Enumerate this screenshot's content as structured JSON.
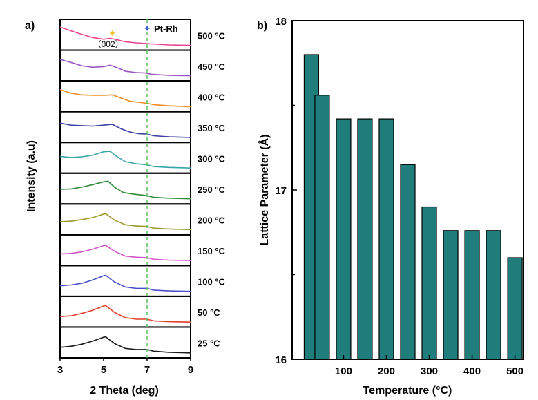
{
  "chart_data": [
    {
      "type": "line",
      "panel_label": "a)",
      "xlabel": "2 Theta (deg)",
      "ylabel": "Intensity (a.u)",
      "xlim": [
        3,
        9
      ],
      "x_ticks": [
        "3",
        "5",
        "7",
        "9"
      ],
      "stacked": true,
      "reference_line_x": 7,
      "annotations": [
        {
          "text": "Pt-Rh",
          "marker": "blue-star",
          "x": 7
        },
        {
          "text": "（002）",
          "marker": "yellow-star",
          "x": 5.4
        }
      ],
      "series": [
        {
          "name": "500 °C",
          "color": "#e8458f",
          "points": [
            [
              3,
              0.9
            ],
            [
              3.5,
              0.72
            ],
            [
              4,
              0.55
            ],
            [
              4.5,
              0.4
            ],
            [
              5,
              0.32
            ],
            [
              5.3,
              0.36
            ],
            [
              5.6,
              0.3
            ],
            [
              6,
              0.2
            ],
            [
              6.5,
              0.15
            ],
            [
              6.9,
              0.12
            ],
            [
              7.2,
              0.1
            ],
            [
              8,
              0.05
            ],
            [
              9,
              0.03
            ]
          ]
        },
        {
          "name": "450 °C",
          "color": "#9b56c4",
          "points": [
            [
              3,
              0.82
            ],
            [
              3.5,
              0.68
            ],
            [
              4,
              0.52
            ],
            [
              4.5,
              0.45
            ],
            [
              5,
              0.48
            ],
            [
              5.3,
              0.55
            ],
            [
              5.7,
              0.4
            ],
            [
              6,
              0.26
            ],
            [
              6.5,
              0.2
            ],
            [
              6.9,
              0.18
            ],
            [
              7.2,
              0.12
            ],
            [
              8,
              0.07
            ],
            [
              9,
              0.05
            ]
          ]
        },
        {
          "name": "400 °C",
          "color": "#f08c21",
          "points": [
            [
              3,
              0.85
            ],
            [
              3.5,
              0.68
            ],
            [
              4,
              0.6
            ],
            [
              4.5,
              0.58
            ],
            [
              5,
              0.58
            ],
            [
              5.4,
              0.6
            ],
            [
              5.8,
              0.45
            ],
            [
              6.2,
              0.3
            ],
            [
              6.6,
              0.25
            ],
            [
              7,
              0.2
            ],
            [
              7.3,
              0.14
            ],
            [
              8,
              0.08
            ],
            [
              9,
              0.04
            ]
          ]
        },
        {
          "name": "350 °C",
          "color": "#3b3fa0",
          "points": [
            [
              3,
              0.72
            ],
            [
              3.5,
              0.62
            ],
            [
              4,
              0.6
            ],
            [
              4.5,
              0.58
            ],
            [
              5,
              0.62
            ],
            [
              5.4,
              0.66
            ],
            [
              5.8,
              0.45
            ],
            [
              6.2,
              0.3
            ],
            [
              6.6,
              0.22
            ],
            [
              7,
              0.2
            ],
            [
              7.3,
              0.12
            ],
            [
              8,
              0.07
            ],
            [
              9,
              0.04
            ]
          ]
        },
        {
          "name": "300 °C",
          "color": "#3aa5a8",
          "points": [
            [
              3,
              0.6
            ],
            [
              3.5,
              0.55
            ],
            [
              4,
              0.58
            ],
            [
              4.5,
              0.66
            ],
            [
              5,
              0.82
            ],
            [
              5.3,
              0.84
            ],
            [
              5.6,
              0.6
            ],
            [
              6,
              0.35
            ],
            [
              6.5,
              0.25
            ],
            [
              7,
              0.2
            ],
            [
              7.3,
              0.12
            ],
            [
              8,
              0.08
            ],
            [
              9,
              0.05
            ]
          ]
        },
        {
          "name": "250 °C",
          "color": "#2e8b3a",
          "points": [
            [
              3,
              0.5
            ],
            [
              3.5,
              0.52
            ],
            [
              4,
              0.6
            ],
            [
              4.5,
              0.72
            ],
            [
              5,
              0.85
            ],
            [
              5.2,
              0.88
            ],
            [
              5.5,
              0.6
            ],
            [
              5.9,
              0.35
            ],
            [
              6.3,
              0.28
            ],
            [
              7,
              0.2
            ],
            [
              7.3,
              0.12
            ],
            [
              8,
              0.08
            ],
            [
              9,
              0.05
            ]
          ]
        },
        {
          "name": "200 °C",
          "color": "#9a9a2a",
          "points": [
            [
              3,
              0.42
            ],
            [
              3.5,
              0.45
            ],
            [
              4,
              0.52
            ],
            [
              4.5,
              0.62
            ],
            [
              5,
              0.78
            ],
            [
              5.1,
              0.8
            ],
            [
              5.5,
              0.5
            ],
            [
              6,
              0.28
            ],
            [
              6.5,
              0.22
            ],
            [
              7,
              0.2
            ],
            [
              7.3,
              0.12
            ],
            [
              8,
              0.08
            ],
            [
              9,
              0.05
            ]
          ]
        },
        {
          "name": "150 °C",
          "color": "#d256c8",
          "points": [
            [
              3,
              0.35
            ],
            [
              3.5,
              0.38
            ],
            [
              4,
              0.45
            ],
            [
              4.5,
              0.58
            ],
            [
              5,
              0.75
            ],
            [
              5.1,
              0.76
            ],
            [
              5.5,
              0.48
            ],
            [
              6,
              0.25
            ],
            [
              6.5,
              0.2
            ],
            [
              7,
              0.18
            ],
            [
              7.3,
              0.1
            ],
            [
              8,
              0.06
            ],
            [
              9,
              0.04
            ]
          ]
        },
        {
          "name": "100 °C",
          "color": "#4a4ec8",
          "points": [
            [
              3,
              0.3
            ],
            [
              3.5,
              0.34
            ],
            [
              4,
              0.42
            ],
            [
              4.5,
              0.58
            ],
            [
              5,
              0.78
            ],
            [
              5.1,
              0.8
            ],
            [
              5.5,
              0.48
            ],
            [
              6,
              0.25
            ],
            [
              6.5,
              0.18
            ],
            [
              7,
              0.18
            ],
            [
              7.3,
              0.1
            ],
            [
              8,
              0.06
            ],
            [
              9,
              0.04
            ]
          ]
        },
        {
          "name": "50 °C",
          "color": "#e0402a",
          "points": [
            [
              3,
              0.3
            ],
            [
              3.5,
              0.34
            ],
            [
              4,
              0.45
            ],
            [
              4.5,
              0.6
            ],
            [
              5,
              0.8
            ],
            [
              5.1,
              0.82
            ],
            [
              5.5,
              0.5
            ],
            [
              6,
              0.25
            ],
            [
              6.5,
              0.18
            ],
            [
              7,
              0.18
            ],
            [
              7.3,
              0.1
            ],
            [
              8,
              0.06
            ],
            [
              9,
              0.04
            ]
          ]
        },
        {
          "name": "25 °C",
          "color": "#1a1a1a",
          "points": [
            [
              3,
              0.3
            ],
            [
              3.5,
              0.35
            ],
            [
              4,
              0.45
            ],
            [
              4.5,
              0.6
            ],
            [
              5,
              0.78
            ],
            [
              5.1,
              0.8
            ],
            [
              5.5,
              0.48
            ],
            [
              6,
              0.25
            ],
            [
              6.5,
              0.2
            ],
            [
              7,
              0.2
            ],
            [
              7.3,
              0.12
            ],
            [
              8,
              0.07
            ],
            [
              9,
              0.04
            ]
          ]
        }
      ]
    },
    {
      "type": "bar",
      "panel_label": "b)",
      "xlabel": "Temperature (°C)",
      "ylabel": "Lattice Parameter (Å)",
      "ylim": [
        16,
        18
      ],
      "xlim": [
        -20,
        520
      ],
      "y_ticks": [
        "16",
        "17",
        "18"
      ],
      "x_ticks": [
        "100",
        "200",
        "300",
        "400",
        "500"
      ],
      "x_tick_values": [
        100,
        200,
        300,
        400,
        500
      ],
      "bar_color": "#1f7d7b",
      "x": [
        25,
        50,
        100,
        150,
        200,
        250,
        300,
        350,
        400,
        450,
        500
      ],
      "values": [
        17.8,
        17.56,
        17.42,
        17.42,
        17.42,
        17.15,
        16.9,
        16.76,
        16.76,
        16.76,
        16.6
      ]
    }
  ]
}
